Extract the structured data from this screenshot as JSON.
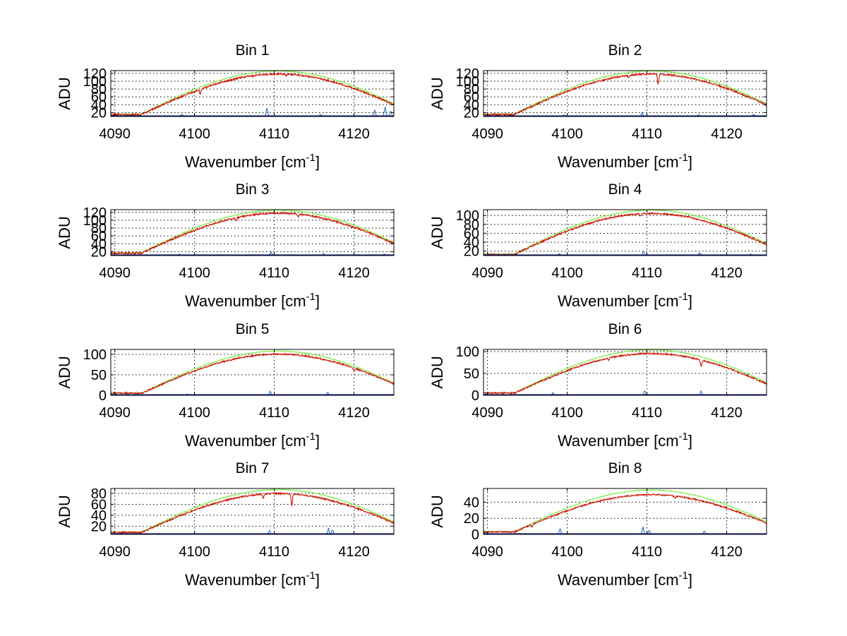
{
  "figure": {
    "xlabel": "Wavenumber [cm",
    "xlabel_sup": "-1",
    "xlabel_close": "]",
    "ylabel": "ADU"
  },
  "colors": {
    "green": "#88ee55",
    "red": "#cc1100",
    "blue": "#1f66bb",
    "navy": "#001080",
    "grid": "#000000",
    "axis": "#000000"
  },
  "chart_data": [
    {
      "type": "line",
      "title": "Bin 1",
      "xlabel": "Wavenumber [cm-1]",
      "ylabel": "ADU",
      "xlim": [
        4089.5,
        4125
      ],
      "ylim": [
        10,
        127
      ],
      "xticks": [
        4090,
        4100,
        4110,
        4120
      ],
      "yticks": [
        20,
        40,
        60,
        80,
        100,
        120
      ],
      "green_peak": 126,
      "red_peak": 120,
      "edge_fraction": 0.14,
      "blue_peaks": [
        [
          4098.4,
          5
        ],
        [
          4109.1,
          20
        ],
        [
          4115.8,
          4
        ],
        [
          4122.6,
          16
        ],
        [
          4123.9,
          22
        ],
        [
          4124.6,
          14
        ]
      ],
      "dips": [
        [
          4100.7,
          12
        ],
        [
          4111.5,
          4
        ]
      ]
    },
    {
      "type": "line",
      "title": "Bin 2",
      "xlabel": "Wavenumber [cm-1]",
      "ylabel": "ADU",
      "xlim": [
        4089.5,
        4125
      ],
      "ylim": [
        10,
        127
      ],
      "xticks": [
        4090,
        4100,
        4110,
        4120
      ],
      "yticks": [
        20,
        40,
        60,
        80,
        100,
        120
      ],
      "green_peak": 126,
      "red_peak": 120,
      "edge_fraction": 0.14,
      "blue_peaks": [
        [
          4099.6,
          3
        ],
        [
          4109.4,
          9
        ],
        [
          4116.5,
          3
        ],
        [
          4123.4,
          5
        ]
      ],
      "dips": [
        [
          4111.4,
          25
        ],
        [
          4107.7,
          6
        ]
      ]
    },
    {
      "type": "line",
      "title": "Bin 3",
      "xlabel": "Wavenumber [cm-1]",
      "ylabel": "ADU",
      "xlim": [
        4089.5,
        4125
      ],
      "ylim": [
        10,
        127
      ],
      "xticks": [
        4090,
        4100,
        4110,
        4120
      ],
      "yticks": [
        20,
        40,
        60,
        80,
        100,
        120
      ],
      "green_peak": 126,
      "red_peak": 120,
      "edge_fraction": 0.15,
      "blue_peaks": [
        [
          4098.1,
          3
        ],
        [
          4109.6,
          8
        ],
        [
          4116.2,
          4
        ],
        [
          4123.8,
          3
        ]
      ],
      "dips": [
        [
          4105.2,
          8
        ],
        [
          4113.0,
          6
        ]
      ]
    },
    {
      "type": "line",
      "title": "Bin 4",
      "xlabel": "Wavenumber [cm-1]",
      "ylabel": "ADU",
      "xlim": [
        4089.5,
        4125
      ],
      "ylim": [
        10,
        113
      ],
      "xticks": [
        4090,
        4100,
        4110,
        4120
      ],
      "yticks": [
        20,
        40,
        60,
        80,
        100
      ],
      "green_peak": 112,
      "red_peak": 106,
      "edge_fraction": 0.13,
      "blue_peaks": [
        [
          4099.0,
          3
        ],
        [
          4109.6,
          10
        ],
        [
          4116.6,
          5
        ],
        [
          4123.0,
          3
        ]
      ],
      "dips": [
        [
          4109.2,
          5
        ]
      ]
    },
    {
      "type": "line",
      "title": "Bin 5",
      "xlabel": "Wavenumber [cm-1]",
      "ylabel": "ADU",
      "xlim": [
        4089.5,
        4125
      ],
      "ylim": [
        0,
        112
      ],
      "xticks": [
        4090,
        4100,
        4110,
        4120
      ],
      "yticks": [
        0,
        50,
        100
      ],
      "green_peak": 108,
      "red_peak": 102,
      "edge_fraction": 0.06,
      "blue_peaks": [
        [
          4099.1,
          2
        ],
        [
          4109.5,
          9
        ],
        [
          4116.7,
          6
        ]
      ],
      "dips": [
        [
          4120.0,
          6
        ]
      ]
    },
    {
      "type": "line",
      "title": "Bin 6",
      "xlabel": "Wavenumber [cm-1]",
      "ylabel": "ADU",
      "xlim": [
        4089.5,
        4125
      ],
      "ylim": [
        0,
        105
      ],
      "xticks": [
        4090,
        4100,
        4110,
        4120
      ],
      "yticks": [
        0,
        50,
        100
      ],
      "green_peak": 104,
      "red_peak": 97,
      "edge_fraction": 0.06,
      "blue_peaks": [
        [
          4089.8,
          4
        ],
        [
          4098.2,
          6
        ],
        [
          4109.7,
          10
        ],
        [
          4116.8,
          9
        ]
      ],
      "dips": [
        [
          4116.8,
          15
        ],
        [
          4105.2,
          5
        ]
      ]
    },
    {
      "type": "line",
      "title": "Bin 7",
      "xlabel": "Wavenumber [cm-1]",
      "ylabel": "ADU",
      "xlim": [
        4089.5,
        4125
      ],
      "ylim": [
        5,
        89
      ],
      "xticks": [
        4090,
        4100,
        4110,
        4120
      ],
      "yticks": [
        20,
        40,
        60,
        80
      ],
      "green_peak": 87,
      "red_peak": 81,
      "edge_fraction": 0.12,
      "blue_peaks": [
        [
          4109.4,
          6
        ],
        [
          4116.8,
          10
        ],
        [
          4117.3,
          7
        ]
      ],
      "dips": [
        [
          4112.2,
          20
        ],
        [
          4108.6,
          8
        ]
      ]
    },
    {
      "type": "line",
      "title": "Bin 8",
      "xlabel": "Wavenumber [cm-1]",
      "ylabel": "ADU",
      "xlim": [
        4089.5,
        4125
      ],
      "ylim": [
        0,
        57
      ],
      "xticks": [
        4090,
        4100,
        4110,
        4120
      ],
      "yticks": [
        0,
        20,
        40
      ],
      "green_peak": 55,
      "red_peak": 50,
      "edge_fraction": 0.07,
      "blue_peaks": [
        [
          4089.9,
          2
        ],
        [
          4099.1,
          7
        ],
        [
          4109.5,
          9
        ],
        [
          4110.3,
          5
        ],
        [
          4117.2,
          4
        ]
      ],
      "dips": [
        [
          4095.6,
          3
        ],
        [
          4113.5,
          2
        ]
      ]
    }
  ]
}
